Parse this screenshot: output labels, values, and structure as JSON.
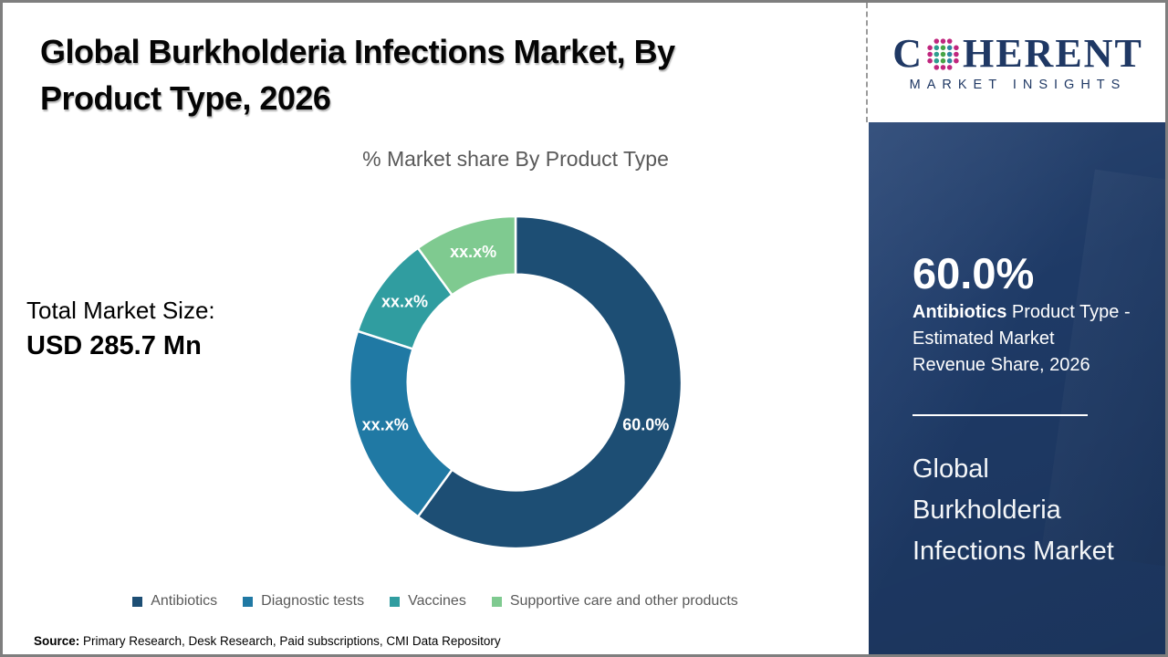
{
  "header": {
    "title_line1": "Global Burkholderia Infections Market, By",
    "title_line2": "Product Type, 2026"
  },
  "main": {
    "total_market_label": "Total Market Size:",
    "total_market_value": "USD 285.7 Mn",
    "source_label": "Source:",
    "source_text": " Primary Research, Desk Research, Paid subscriptions, CMI Data Repository"
  },
  "chart_data": {
    "type": "pie",
    "variant": "donut",
    "title": "% Market share By Product Type",
    "start_angle_deg": 0,
    "direction": "clockwise",
    "inner_radius_ratio": 0.65,
    "legend_position": "bottom",
    "segments": [
      {
        "label": "Antibiotics",
        "value": 60.0,
        "value_label": "60.0%",
        "color": "#1d4e74"
      },
      {
        "label": "Diagnostic tests",
        "value": 20.0,
        "value_label": "xx.x%",
        "color": "#2079a4"
      },
      {
        "label": "Vaccines",
        "value": 10.0,
        "value_label": "xx.x%",
        "color": "#309da0"
      },
      {
        "label": "Supportive care and other products",
        "value": 10.0,
        "value_label": "xx.x%",
        "color": "#7fca90"
      }
    ]
  },
  "sidebar": {
    "logo": {
      "text_c": "C",
      "text_rest": "HERENT",
      "subtitle": "MARKET INSIGHTS"
    },
    "stat_value": "60.0%",
    "stat_bold": "Antibiotics",
    "stat_line1_rest": " Product Type -",
    "stat_line2": "Estimated Market",
    "stat_line3": "Revenue Share, 2026",
    "headline": "Global Burkholderia Infections Market"
  },
  "colors": {
    "panel_navy": "#1e3a66",
    "logo_navy": "#1f3864",
    "text_gray": "#595959",
    "border_gray": "#7e7e7e"
  }
}
